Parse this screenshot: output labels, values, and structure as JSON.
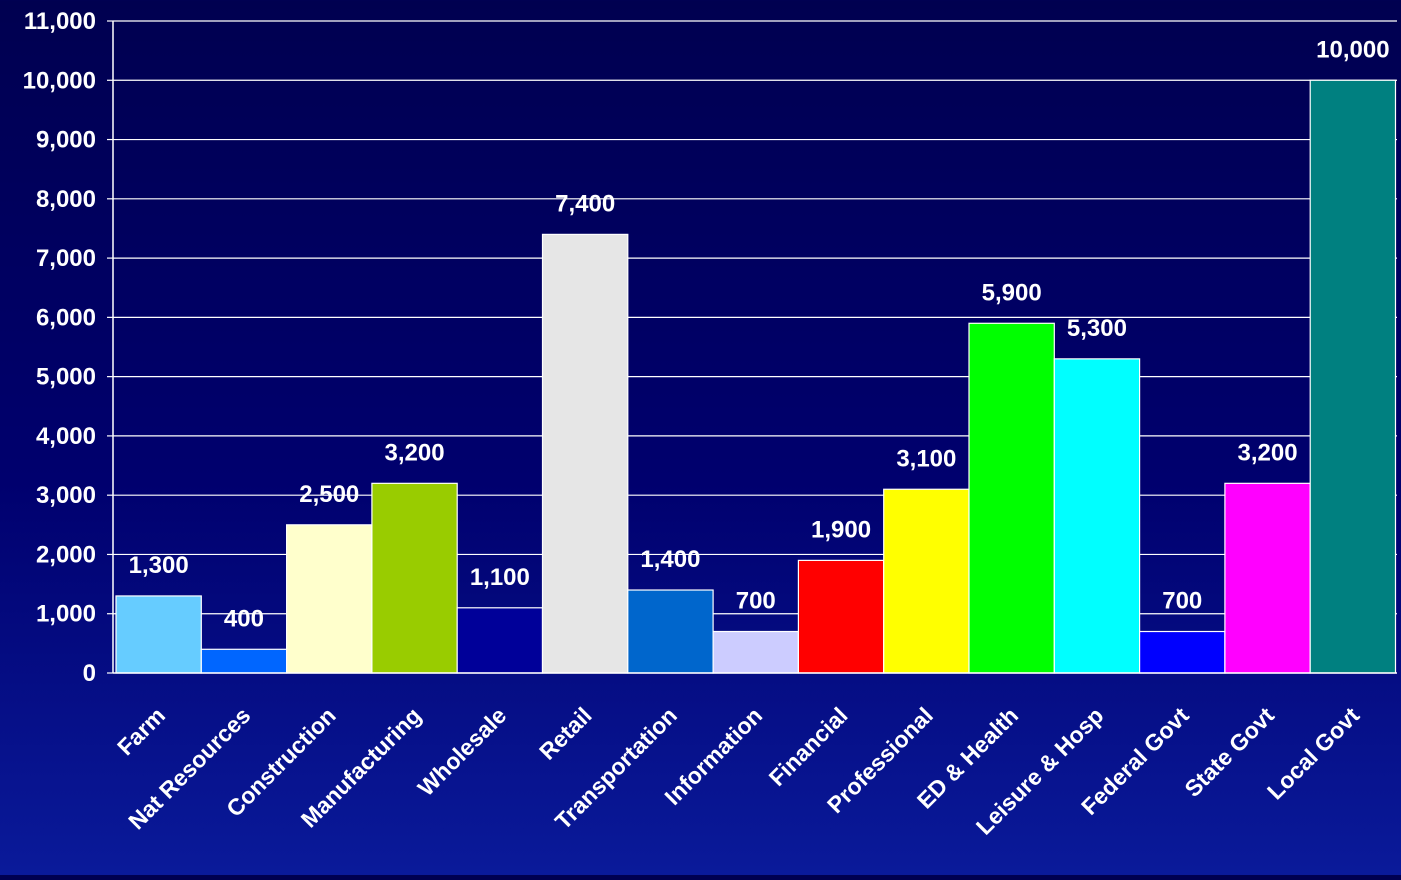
{
  "chart_data": {
    "type": "bar",
    "categories": [
      "Farm",
      "Nat Resources",
      "Construction",
      "Manufacturing",
      "Wholesale",
      "Retail",
      "Transportation",
      "Information",
      "Financial",
      "Professional",
      "ED & Health",
      "Leisure & Hosp",
      "Federal Govt",
      "State Govt",
      "Local Govt"
    ],
    "values": [
      1300,
      400,
      2500,
      3200,
      1100,
      7400,
      1400,
      700,
      1900,
      3100,
      5900,
      5300,
      700,
      3200,
      10000
    ],
    "value_labels": [
      "1,300",
      "400",
      "2,500",
      "3,200",
      "1,100",
      "7,400",
      "1,400",
      "700",
      "1,900",
      "3,100",
      "5,900",
      "5,300",
      "700",
      "3,200",
      "10,000"
    ],
    "colors": [
      "#66ccff",
      "#0066ff",
      "#ffffcc",
      "#99cc00",
      "#000099",
      "#e6e6e6",
      "#0066cc",
      "#ccccff",
      "#ff0000",
      "#ffff00",
      "#00ff00",
      "#00ffff",
      "#0000ff",
      "#ff00ff",
      "#008080"
    ],
    "ylim": [
      0,
      11000
    ],
    "yticks": [
      0,
      1000,
      2000,
      3000,
      4000,
      5000,
      6000,
      7000,
      8000,
      9000,
      10000,
      11000
    ],
    "ytick_labels": [
      "0",
      "1,000",
      "2,000",
      "3,000",
      "4,000",
      "5,000",
      "6,000",
      "7,000",
      "8,000",
      "9,000",
      "10,000",
      "11,000"
    ],
    "grid": true,
    "title": "",
    "xlabel": "",
    "ylabel": ""
  }
}
